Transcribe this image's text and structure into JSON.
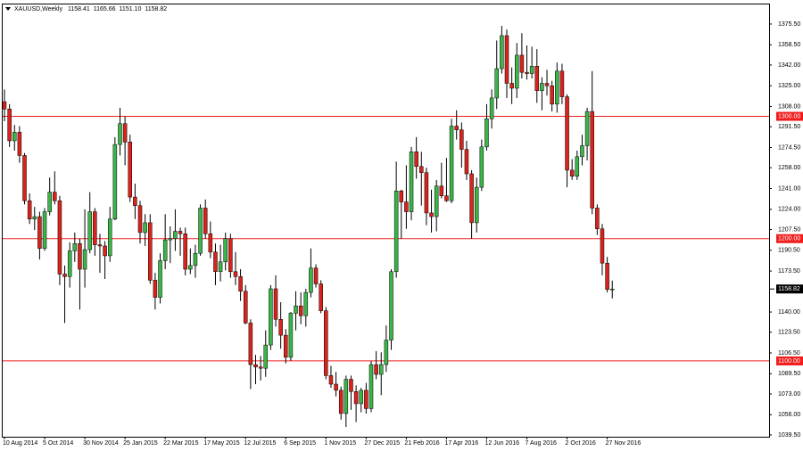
{
  "chart_data": {
    "type": "candlestick",
    "symbol": "XAUUSD,Weekly",
    "last_bar_labels": [
      "1158.41",
      "1165.66",
      "1151.10",
      "1158.82"
    ],
    "categories": [
      "10 Aug 2014",
      null,
      null,
      null,
      null,
      null,
      null,
      null,
      "5 Oct 2014",
      null,
      null,
      null,
      null,
      null,
      null,
      null,
      "30 Nov 2014",
      null,
      null,
      null,
      null,
      null,
      null,
      null,
      "25 Jan 2015",
      null,
      null,
      null,
      null,
      null,
      null,
      null,
      "22 Mar 2015",
      null,
      null,
      null,
      null,
      null,
      null,
      null,
      "17 May 2015",
      null,
      null,
      null,
      null,
      null,
      null,
      null,
      "12 Jul 2015",
      null,
      null,
      null,
      null,
      null,
      null,
      null,
      "6 Sep 2015",
      null,
      null,
      null,
      null,
      null,
      null,
      null,
      "1 Nov 2015",
      null,
      null,
      null,
      null,
      null,
      null,
      null,
      "27 Dec 2015",
      null,
      null,
      null,
      null,
      null,
      null,
      null,
      "21 Feb 2016",
      null,
      null,
      null,
      null,
      null,
      null,
      null,
      "17 Apr 2016",
      null,
      null,
      null,
      null,
      null,
      null,
      null,
      "12 Jun 2016",
      null,
      null,
      null,
      null,
      null,
      null,
      null,
      "7 Aug 2016",
      null,
      null,
      null,
      null,
      null,
      null,
      null,
      "2 Oct 2016",
      null,
      null,
      null,
      null,
      null,
      null,
      null,
      "27 Nov 2016",
      null
    ],
    "open": [
      1312,
      1306,
      1280,
      1287,
      1268,
      1231,
      1216,
      1218,
      1192,
      1222,
      1238,
      1231,
      1171,
      1169,
      1190,
      1196,
      1175,
      1191,
      1222,
      1195,
      1194,
      1186,
      1216,
      1277,
      1294,
      1279,
      1234,
      1227,
      1205,
      1213,
      1166,
      1152,
      1182,
      1199,
      1200,
      1206,
      1204,
      1175,
      1178,
      1188,
      1225,
      1204,
      1189,
      1173,
      1181,
      1200,
      1173,
      1169,
      1157,
      1131,
      1097,
      1095,
      1094,
      1113,
      1159,
      1134,
      1121,
      1103,
      1139,
      1145,
      1137,
      1156,
      1176,
      1163,
      1141,
      1088,
      1081,
      1076,
      1057,
      1085,
      1075,
      1065,
      1076,
      1061,
      1097,
      1089,
      1097,
      1117,
      1173,
      1239,
      1230,
      1222,
      1271,
      1259,
      1254,
      1221,
      1218,
      1243,
      1235,
      1231,
      1292,
      1289,
      1273,
      1253,
      1213,
      1242,
      1275,
      1298,
      1315,
      1339,
      1366,
      1327,
      1323,
      1350,
      1336,
      1335,
      1341,
      1321,
      1327,
      1325,
      1310,
      1337,
      1316,
      1256,
      1251,
      1267,
      1276,
      1304,
      1225,
      1208,
      1180,
      1158.41
    ],
    "high": [
      1322,
      1310,
      1293,
      1292,
      1270,
      1237,
      1226,
      1222,
      1225,
      1250,
      1255,
      1235,
      1178,
      1197,
      1205,
      1200,
      1224,
      1238,
      1225,
      1204,
      1198,
      1226,
      1283,
      1307,
      1300,
      1285,
      1245,
      1231,
      1220,
      1220,
      1172,
      1188,
      1220,
      1210,
      1224,
      1209,
      1209,
      1192,
      1195,
      1228,
      1232,
      1214,
      1196,
      1195,
      1205,
      1204,
      1189,
      1175,
      1162,
      1134,
      1105,
      1104,
      1125,
      1162,
      1170,
      1148,
      1126,
      1140,
      1157,
      1156,
      1159,
      1192,
      1179,
      1166,
      1144,
      1096,
      1091,
      1079,
      1088,
      1088,
      1080,
      1078,
      1082,
      1100,
      1108,
      1107,
      1129,
      1175,
      1263,
      1240,
      1260,
      1275,
      1283,
      1271,
      1258,
      1240,
      1248,
      1262,
      1266,
      1298,
      1305,
      1295,
      1280,
      1256,
      1250,
      1281,
      1310,
      1322,
      1362,
      1374,
      1371,
      1340,
      1360,
      1368,
      1358,
      1357,
      1355,
      1332,
      1338,
      1329,
      1344,
      1343,
      1318,
      1265,
      1272,
      1285,
      1307,
      1337,
      1228,
      1212,
      1185,
      1165.66
    ],
    "low": [
      1296,
      1275,
      1272,
      1262,
      1228,
      1212,
      1207,
      1183,
      1190,
      1219,
      1228,
      1162,
      1131,
      1160,
      1181,
      1142,
      1160,
      1188,
      1186,
      1172,
      1167,
      1181,
      1215,
      1268,
      1260,
      1230,
      1216,
      1196,
      1194,
      1163,
      1142,
      1147,
      1175,
      1180,
      1190,
      1186,
      1170,
      1171,
      1168,
      1186,
      1200,
      1184,
      1162,
      1165,
      1174,
      1168,
      1162,
      1149,
      1130,
      1077,
      1081,
      1084,
      1087,
      1109,
      1128,
      1110,
      1098,
      1100,
      1125,
      1130,
      1128,
      1152,
      1160,
      1139,
      1085,
      1078,
      1071,
      1052,
      1046,
      1060,
      1050,
      1058,
      1057,
      1058,
      1085,
      1072,
      1091,
      1109,
      1168,
      1200,
      1208,
      1215,
      1249,
      1227,
      1211,
      1205,
      1206,
      1233,
      1230,
      1229,
      1281,
      1258,
      1248,
      1200,
      1205,
      1239,
      1272,
      1290,
      1306,
      1335,
      1315,
      1310,
      1315,
      1331,
      1330,
      1331,
      1311,
      1305,
      1317,
      1304,
      1303,
      1310,
      1242,
      1248,
      1248,
      1260,
      1264,
      1220,
      1203,
      1170,
      1156,
      1151.1
    ],
    "close": [
      1306,
      1280,
      1287,
      1268,
      1231,
      1216,
      1218,
      1192,
      1222,
      1238,
      1231,
      1171,
      1169,
      1190,
      1196,
      1175,
      1191,
      1222,
      1195,
      1194,
      1186,
      1216,
      1277,
      1294,
      1279,
      1234,
      1227,
      1205,
      1213,
      1166,
      1152,
      1182,
      1199,
      1200,
      1206,
      1204,
      1175,
      1178,
      1188,
      1225,
      1204,
      1189,
      1173,
      1181,
      1200,
      1173,
      1169,
      1157,
      1131,
      1097,
      1095,
      1094,
      1113,
      1159,
      1134,
      1121,
      1103,
      1139,
      1145,
      1137,
      1156,
      1176,
      1163,
      1141,
      1088,
      1081,
      1076,
      1057,
      1085,
      1075,
      1065,
      1076,
      1061,
      1097,
      1089,
      1097,
      1117,
      1173,
      1239,
      1230,
      1222,
      1271,
      1259,
      1254,
      1221,
      1218,
      1243,
      1235,
      1231,
      1292,
      1289,
      1273,
      1253,
      1213,
      1242,
      1275,
      1298,
      1315,
      1339,
      1366,
      1327,
      1323,
      1350,
      1336,
      1335,
      1341,
      1321,
      1327,
      1325,
      1310,
      1337,
      1316,
      1256,
      1251,
      1267,
      1276,
      1304,
      1225,
      1208,
      1180,
      1158.41,
      1158.82
    ],
    "up_color": "#3bb54a",
    "down_color": "#d9231c",
    "wick_color": "#000000",
    "ylim": [
      1038,
      1391.5
    ],
    "yticks": [
      {
        "value": 1375.5,
        "label": "1375.50"
      },
      {
        "value": 1358.5,
        "label": "1358.50"
      },
      {
        "value": 1342,
        "label": "1342.00"
      },
      {
        "value": 1325,
        "label": "1325.00"
      },
      {
        "value": 1308,
        "label": "1308.00"
      },
      {
        "value": 1291.5,
        "label": "1291.50"
      },
      {
        "value": 1274.5,
        "label": "1274.50"
      },
      {
        "value": 1258,
        "label": "1258.00"
      },
      {
        "value": 1241,
        "label": "1241.00"
      },
      {
        "value": 1224,
        "label": "1224.00"
      },
      {
        "value": 1207.5,
        "label": "1207.50"
      },
      {
        "value": 1190.5,
        "label": "1190.50"
      },
      {
        "value": 1173.5,
        "label": "1173.50"
      },
      {
        "value": 1140,
        "label": "1140.00"
      },
      {
        "value": 1123.5,
        "label": "1123.50"
      },
      {
        "value": 1106.5,
        "label": "1106.50"
      },
      {
        "value": 1089.5,
        "label": "1089.50"
      },
      {
        "value": 1073,
        "label": "1073.00"
      },
      {
        "value": 1056,
        "label": "1056.00"
      },
      {
        "value": 1039.5,
        "label": "1039.50"
      }
    ],
    "levels": [
      {
        "value": 1300,
        "label": "1300.00"
      },
      {
        "value": 1200,
        "label": "1200.00"
      },
      {
        "value": 1100,
        "label": "1100.00"
      }
    ],
    "level_color": "#f01c1c",
    "last_price": {
      "value": 1158.82,
      "label": "1158.82"
    },
    "grid": false
  }
}
